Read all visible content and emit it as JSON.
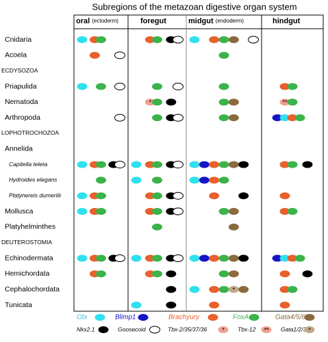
{
  "title": "Subregions of the metazoan digestive organ system",
  "columns": [
    {
      "title": "oral",
      "note": "(ectoderm)"
    },
    {
      "title": "foregut"
    },
    {
      "title": "midgut",
      "note": "(endoderm)"
    },
    {
      "title": "hindgut"
    }
  ],
  "legend": [
    {
      "name": "Otx",
      "color": "#2fe0ee",
      "label_color": "#2fc8e0"
    },
    {
      "name": "Blimp1",
      "color": "#1414c8",
      "label_color": "#1414c8"
    },
    {
      "name": "Brachyury",
      "color": "#e8602c",
      "label_color": "#e8602c"
    },
    {
      "name": "FoxA",
      "color": "#3cb34a",
      "label_color": "#3cb34a"
    },
    {
      "name": "Gata4/5/6",
      "color": "#8b6a3e",
      "label_color": "#8b6a3e"
    },
    {
      "name": "Nkx2.1",
      "color": "#000000",
      "label_color": "#000000"
    },
    {
      "name": "Goosecoid",
      "color": "#ffffff",
      "label_color": "#000000"
    },
    {
      "name": "Tbx-2/35/37/36",
      "color": "#f0a090",
      "label_color": "#000000",
      "mark": "*"
    },
    {
      "name": "Tbx-12",
      "color": "#f0a090",
      "label_color": "#000000",
      "mark": "**"
    },
    {
      "name": "Gata1/2/3",
      "color": "#c0a888",
      "label_color": "#000000",
      "mark": "*"
    }
  ],
  "rows": [
    {
      "label": "Cnidaria",
      "level": "taxon",
      "cells": [
        [
          "Otx",
          "Brachyury",
          "FoxA"
        ],
        [
          "Brachyury",
          "FoxA",
          "Nkx2.1",
          "Goosecoid"
        ],
        [
          "Otx",
          "Brachyury",
          "FoxA",
          "Gata4/5/6",
          "Goosecoid"
        ],
        []
      ]
    },
    {
      "label": "Acoela",
      "level": "taxon",
      "cells": [
        [
          "Brachyury",
          "Goosecoid"
        ],
        [],
        [
          "FoxA"
        ],
        []
      ]
    },
    {
      "label": "ECDYSOZOA",
      "level": "group"
    },
    {
      "label": "Priapulida",
      "level": "taxon",
      "cells": [
        [
          "Otx",
          "FoxA",
          "Goosecoid"
        ],
        [
          "FoxA",
          "Goosecoid"
        ],
        [
          "FoxA"
        ],
        [
          "Brachyury",
          "FoxA"
        ]
      ]
    },
    {
      "label": "Nematoda",
      "level": "taxon",
      "cells": [
        [],
        [
          "Tbx-2/35/37/36",
          "FoxA",
          "Nkx2.1"
        ],
        [
          "FoxA",
          "Gata4/5/6"
        ],
        [
          "Tbx-12",
          "FoxA"
        ]
      ]
    },
    {
      "label": "Arthropoda",
      "level": "taxon",
      "cells": [
        [
          "Goosecoid"
        ],
        [
          "FoxA",
          "Nkx2.1",
          "Goosecoid"
        ],
        [
          "FoxA",
          "Gata4/5/6"
        ],
        [
          "Blimp1",
          "Otx",
          "Brachyury",
          "FoxA"
        ]
      ]
    },
    {
      "label": "LOPHOTROCHOZOA",
      "level": "group"
    },
    {
      "label": "Annelida",
      "level": "taxon"
    },
    {
      "label": "Capitella teleta",
      "level": "species",
      "cells": [
        [
          "Otx",
          "Brachyury",
          "FoxA",
          "Nkx2.1",
          "Goosecoid"
        ],
        [
          "Otx",
          "Brachyury",
          "FoxA",
          "Nkx2.1",
          "Goosecoid"
        ],
        [
          "Otx",
          "Blimp1",
          "Brachyury",
          "FoxA",
          "Gata4/5/6",
          "Nkx2.1"
        ],
        [
          "Brachyury",
          "FoxA",
          "Nkx2.1"
        ]
      ]
    },
    {
      "label": "Hydroides elegans",
      "level": "species",
      "cells": [
        [
          "FoxA"
        ],
        [
          "Otx",
          "FoxA"
        ],
        [
          "Otx",
          "Blimp1",
          "Brachyury",
          "FoxA"
        ],
        []
      ]
    },
    {
      "label": "Platynereis dumerilii",
      "level": "species",
      "cells": [
        [
          "Otx",
          "Brachyury",
          "FoxA"
        ],
        [
          "Brachyury",
          "FoxA",
          "Nkx2.1",
          "Goosecoid"
        ],
        [
          "Brachyury",
          "Nkx2.1"
        ],
        [
          "Brachyury"
        ]
      ]
    },
    {
      "label": "Mollusca",
      "level": "taxon",
      "cells": [
        [
          "Otx",
          "Brachyury",
          "FoxA"
        ],
        [
          "Brachyury",
          "FoxA",
          "Nkx2.1",
          "Goosecoid"
        ],
        [
          "FoxA",
          "Gata4/5/6"
        ],
        [
          "Brachyury",
          "FoxA"
        ]
      ]
    },
    {
      "label": "Platyhelminthes",
      "level": "taxon",
      "cells": [
        [],
        [
          "FoxA"
        ],
        [
          "Gata4/5/6"
        ],
        []
      ]
    },
    {
      "label": "DEUTEROSTOMIA",
      "level": "group"
    },
    {
      "label": "Echinodermata",
      "level": "taxon",
      "cells": [
        [
          "Otx",
          "Brachyury",
          "FoxA",
          "Nkx2.1",
          "Goosecoid"
        ],
        [
          "Otx",
          "Brachyury",
          "FoxA",
          "Nkx2.1",
          "Goosecoid"
        ],
        [
          "Otx",
          "Blimp1",
          "Brachyury",
          "FoxA",
          "Gata4/5/6",
          "Nkx2.1"
        ],
        [
          "Blimp1",
          "Otx",
          "Brachyury",
          "FoxA"
        ]
      ]
    },
    {
      "label": "Hemichordata",
      "level": "taxon",
      "cells": [
        [
          "Brachyury",
          "FoxA"
        ],
        [
          "Brachyury",
          "FoxA",
          "Nkx2.1"
        ],
        [
          "FoxA",
          "Gata4/5/6"
        ],
        [
          "Brachyury",
          "Nkx2.1"
        ]
      ]
    },
    {
      "label": "Cephalochordata",
      "level": "taxon",
      "cells": [
        [],
        [
          "Nkx2.1"
        ],
        [
          "Otx",
          "Brachyury",
          "FoxA",
          "Gata1/2/3",
          "Gata4/5/6"
        ],
        [
          "Brachyury",
          "FoxA"
        ]
      ]
    },
    {
      "label": "Tunicata",
      "level": "taxon",
      "cells": [
        [],
        [
          "Otx",
          "Nkx2.1"
        ],
        [
          "Brachyury"
        ],
        [
          "Brachyury"
        ]
      ]
    }
  ]
}
